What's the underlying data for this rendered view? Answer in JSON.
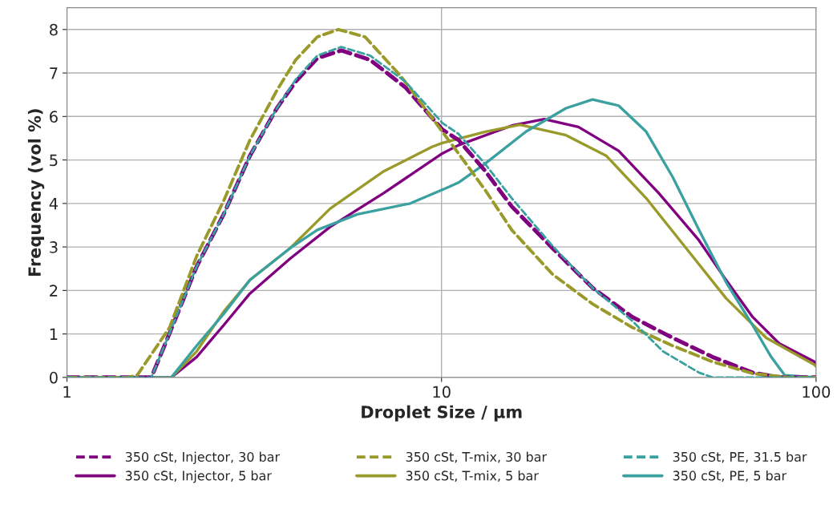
{
  "chart_data": {
    "type": "line",
    "xlabel": "Droplet Size / µm",
    "ylabel": "Frequency (vol %)",
    "log": "x",
    "xlim": [
      1,
      100
    ],
    "xticks": [
      1,
      10,
      100
    ],
    "ylim": [
      0,
      8.5
    ],
    "yticks": [
      0,
      1,
      2,
      3,
      4,
      5,
      6,
      7,
      8
    ],
    "grid": true,
    "legend": "bottom",
    "marker": "none",
    "series": [
      {
        "name": "350 cSt, Injector, 30 bar",
        "color": "#800080",
        "line_style": "dashed",
        "x": [
          1,
          1.68,
          1.88,
          2.22,
          2.62,
          3.08,
          3.64,
          4.08,
          4.66,
          5.4,
          6.45,
          8.01,
          10.05,
          11.1,
          13.1,
          15.4,
          19.8,
          25.3,
          32.3,
          41.4,
          52.9,
          67.7,
          79.7,
          100
        ],
        "values": [
          0,
          0,
          1.02,
          2.55,
          3.75,
          5.1,
          6.2,
          6.8,
          7.34,
          7.52,
          7.3,
          6.67,
          5.7,
          5.46,
          4.74,
          3.93,
          2.97,
          2.06,
          1.39,
          0.91,
          0.47,
          0.11,
          0,
          0
        ]
      },
      {
        "name": "350 cSt, T-mix, 30 bar",
        "color": "#9a9a2a",
        "line_style": "dashed",
        "x": [
          1,
          1.45,
          1.54,
          1.88,
          2.22,
          2.62,
          3.08,
          3.64,
          4.08,
          4.66,
          5.3,
          6.25,
          7.8,
          10.05,
          11.1,
          13.1,
          15.4,
          19.8,
          25.3,
          32.3,
          41.4,
          52.9,
          67.7,
          85,
          100
        ],
        "values": [
          0,
          0,
          0.05,
          1.15,
          2.79,
          4.06,
          5.46,
          6.61,
          7.3,
          7.83,
          8.0,
          7.83,
          6.92,
          5.65,
          5.15,
          4.3,
          3.39,
          2.37,
          1.69,
          1.15,
          0.73,
          0.36,
          0.09,
          0,
          0
        ]
      },
      {
        "name": "350 cSt, PE, 31.5 bar",
        "color": "#3aa0a0",
        "line_style": "dashed",
        "x": [
          1,
          1.68,
          1.88,
          2.22,
          2.62,
          3.08,
          3.64,
          4.08,
          4.66,
          5.4,
          6.45,
          8.01,
          10.05,
          11.1,
          13.1,
          15.4,
          19.8,
          25.3,
          32.3,
          39.0,
          48.7,
          52.9,
          100
        ],
        "values": [
          0,
          0,
          1.02,
          2.55,
          3.75,
          5.1,
          6.2,
          6.85,
          7.4,
          7.6,
          7.4,
          6.8,
          5.85,
          5.6,
          4.9,
          4.12,
          3.02,
          2.06,
          1.3,
          0.6,
          0.11,
          0,
          0
        ]
      },
      {
        "name": "350 cSt, Injector, 5 bar",
        "color": "#800080",
        "line_style": "solid",
        "x": [
          1,
          1.9,
          2.22,
          2.62,
          3.08,
          3.94,
          5.04,
          7.01,
          10.05,
          11.1,
          15.4,
          18.8,
          23.2,
          29.7,
          38.0,
          48.7,
          57.5,
          67.7,
          79.7,
          99.0,
          100
        ],
        "values": [
          0,
          0,
          0.47,
          1.2,
          1.93,
          2.73,
          3.46,
          4.24,
          5.15,
          5.34,
          5.79,
          5.94,
          5.76,
          5.21,
          4.24,
          3.15,
          2.24,
          1.39,
          0.78,
          0.36,
          0.3
        ]
      },
      {
        "name": "350 cSt, T-mix, 5 bar",
        "color": "#9a9a2a",
        "line_style": "solid",
        "x": [
          1,
          1.9,
          2.22,
          2.62,
          3.08,
          3.94,
          5.04,
          7.01,
          9.43,
          10.05,
          13.1,
          16.2,
          21.5,
          27.5,
          35.2,
          45.0,
          57.5,
          73.6,
          99.0,
          100
        ],
        "values": [
          0,
          0,
          0.6,
          1.51,
          2.24,
          2.97,
          3.88,
          4.74,
          5.3,
          5.39,
          5.65,
          5.81,
          5.57,
          5.1,
          4.12,
          2.97,
          1.82,
          0.91,
          0.29,
          0.25
        ]
      },
      {
        "name": "350 cSt, PE, 5 bar",
        "color": "#3aa0a0",
        "line_style": "solid",
        "x": [
          1,
          1.9,
          2.22,
          2.62,
          3.08,
          3.94,
          4.66,
          5.96,
          8.25,
          10.4,
          11.1,
          13.1,
          16.8,
          21.5,
          25.3,
          29.7,
          35.2,
          41.4,
          48.7,
          57.5,
          67.7,
          75.9,
          82.5,
          100
        ],
        "values": [
          0,
          0,
          0.73,
          1.46,
          2.24,
          2.97,
          3.39,
          3.75,
          4.0,
          4.37,
          4.48,
          4.92,
          5.65,
          6.19,
          6.39,
          6.25,
          5.65,
          4.61,
          3.39,
          2.19,
          1.2,
          0.47,
          0.05,
          0
        ]
      }
    ]
  }
}
